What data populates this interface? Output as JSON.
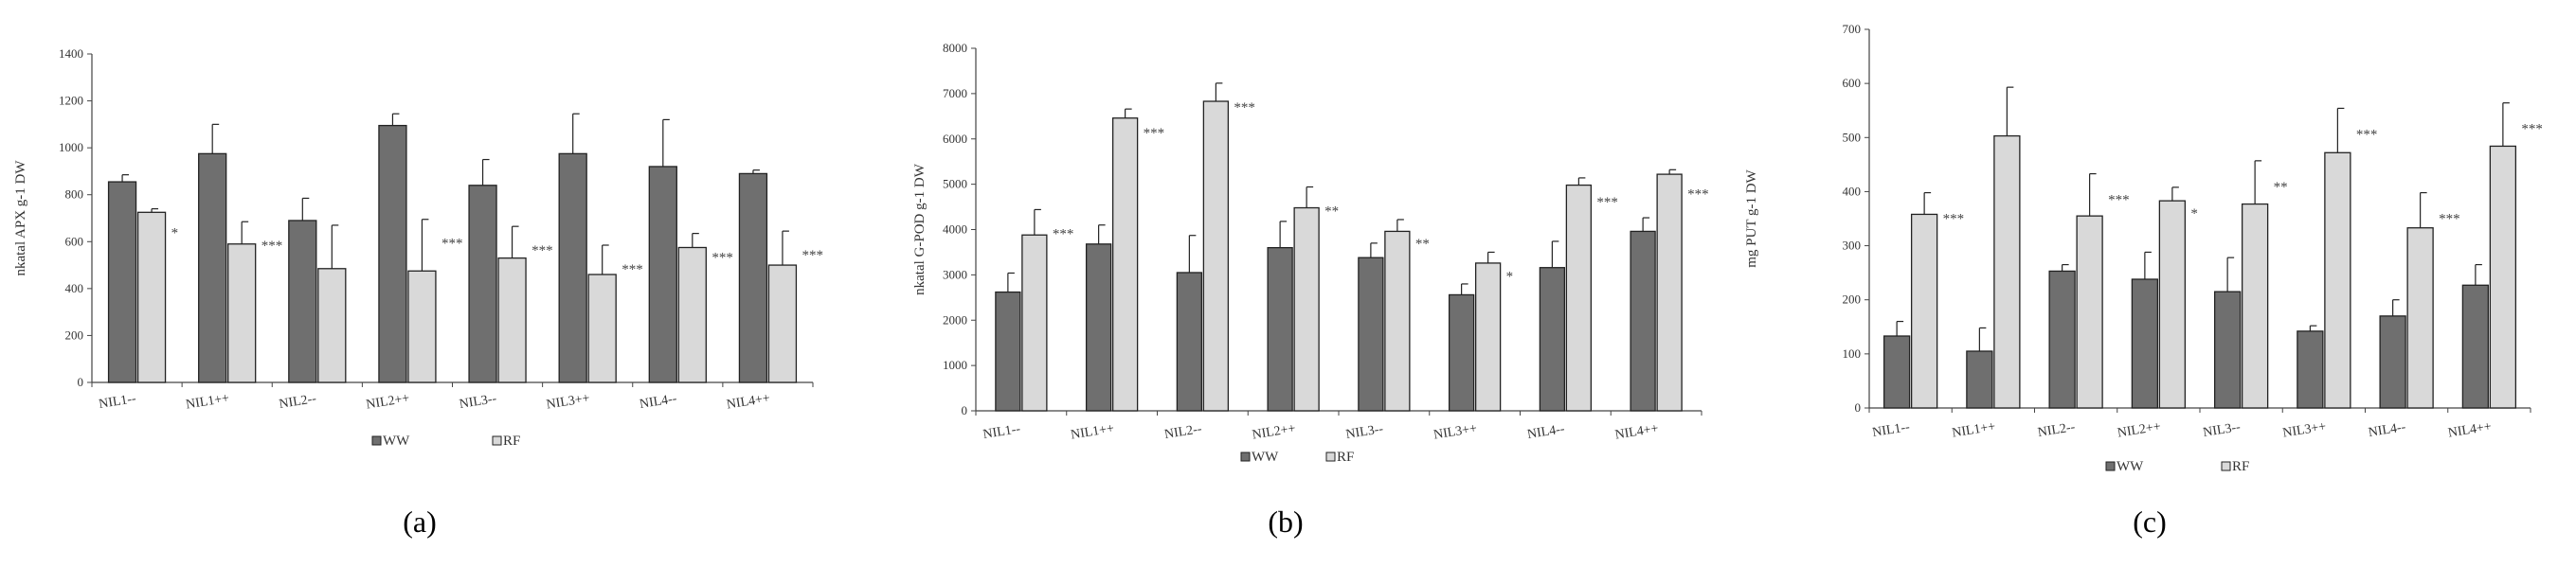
{
  "figure": {
    "panels": [
      {
        "label": "(a)"
      },
      {
        "label": "(b)"
      },
      {
        "label": "(c)"
      }
    ]
  },
  "chart_data": [
    {
      "type": "bar",
      "categories": [
        "NIL1--",
        "NIL1++",
        "NIL2--",
        "NIL2++",
        "NIL3--",
        "NIL3++",
        "NIL4--",
        "NIL4++"
      ],
      "ylabel": "nkatal APX g-1 DW",
      "ylim": [
        0,
        1400
      ],
      "yticks": [
        0,
        200,
        400,
        600,
        800,
        1000,
        1200,
        1400
      ],
      "series": [
        {
          "name": "WW",
          "color": "#6f6f6f",
          "values": [
            855,
            975,
            690,
            1095,
            840,
            975,
            920,
            890
          ],
          "errors": [
            30,
            125,
            95,
            50,
            110,
            170,
            200,
            15
          ]
        },
        {
          "name": "RF",
          "color": "#d9d9d9",
          "values": [
            725,
            590,
            485,
            475,
            530,
            460,
            575,
            500
          ],
          "errors": [
            15,
            95,
            185,
            220,
            135,
            125,
            60,
            145
          ]
        }
      ],
      "significance": [
        "*",
        "***",
        "",
        "***",
        "***",
        "***",
        "***",
        "***"
      ],
      "legend": "bottom",
      "grid": false
    },
    {
      "type": "bar",
      "categories": [
        "NIL1--",
        "NIL1++",
        "NIL2--",
        "NIL2++",
        "NIL3--",
        "NIL3++",
        "NIL4--",
        "NIL4++"
      ],
      "ylabel": "nkatal G-POD g-1 DW",
      "ylim": [
        0,
        8000
      ],
      "yticks": [
        0,
        1000,
        2000,
        3000,
        4000,
        5000,
        6000,
        7000,
        8000
      ],
      "series": [
        {
          "name": "WW",
          "color": "#6f6f6f",
          "values": [
            2620,
            3680,
            3050,
            3600,
            3380,
            2560,
            3160,
            3960
          ],
          "errors": [
            420,
            420,
            820,
            580,
            320,
            240,
            580,
            300
          ]
        },
        {
          "name": "RF",
          "color": "#d9d9d9",
          "values": [
            3880,
            6460,
            6830,
            4480,
            3960,
            3260,
            4980,
            5220
          ],
          "errors": [
            560,
            200,
            400,
            460,
            260,
            240,
            160,
            100
          ]
        }
      ],
      "significance": [
        "***",
        "***",
        "***",
        "**",
        "**",
        "*",
        "***",
        "***"
      ],
      "legend": "bottom",
      "grid": false
    },
    {
      "type": "bar",
      "categories": [
        "NIL1--",
        "NIL1++",
        "NIL2--",
        "NIL2++",
        "NIL3--",
        "NIL3++",
        "NIL4--",
        "NIL4++"
      ],
      "ylabel": "mg PUT g-1 DW",
      "ylim": [
        0,
        700
      ],
      "yticks": [
        0,
        100,
        200,
        300,
        400,
        500,
        600,
        700
      ],
      "series": [
        {
          "name": "WW",
          "color": "#6f6f6f",
          "values": [
            133,
            105,
            253,
            238,
            215,
            142,
            170,
            227
          ],
          "errors": [
            27,
            43,
            12,
            50,
            63,
            10,
            30,
            38
          ]
        },
        {
          "name": "RF",
          "color": "#d9d9d9",
          "values": [
            358,
            503,
            355,
            383,
            377,
            472,
            333,
            484
          ],
          "errors": [
            40,
            90,
            78,
            25,
            80,
            82,
            65,
            80
          ]
        }
      ],
      "significance": [
        "***",
        "",
        "***",
        "*",
        "**",
        "***",
        "***",
        "***"
      ],
      "legend": "bottom",
      "grid": false
    }
  ]
}
